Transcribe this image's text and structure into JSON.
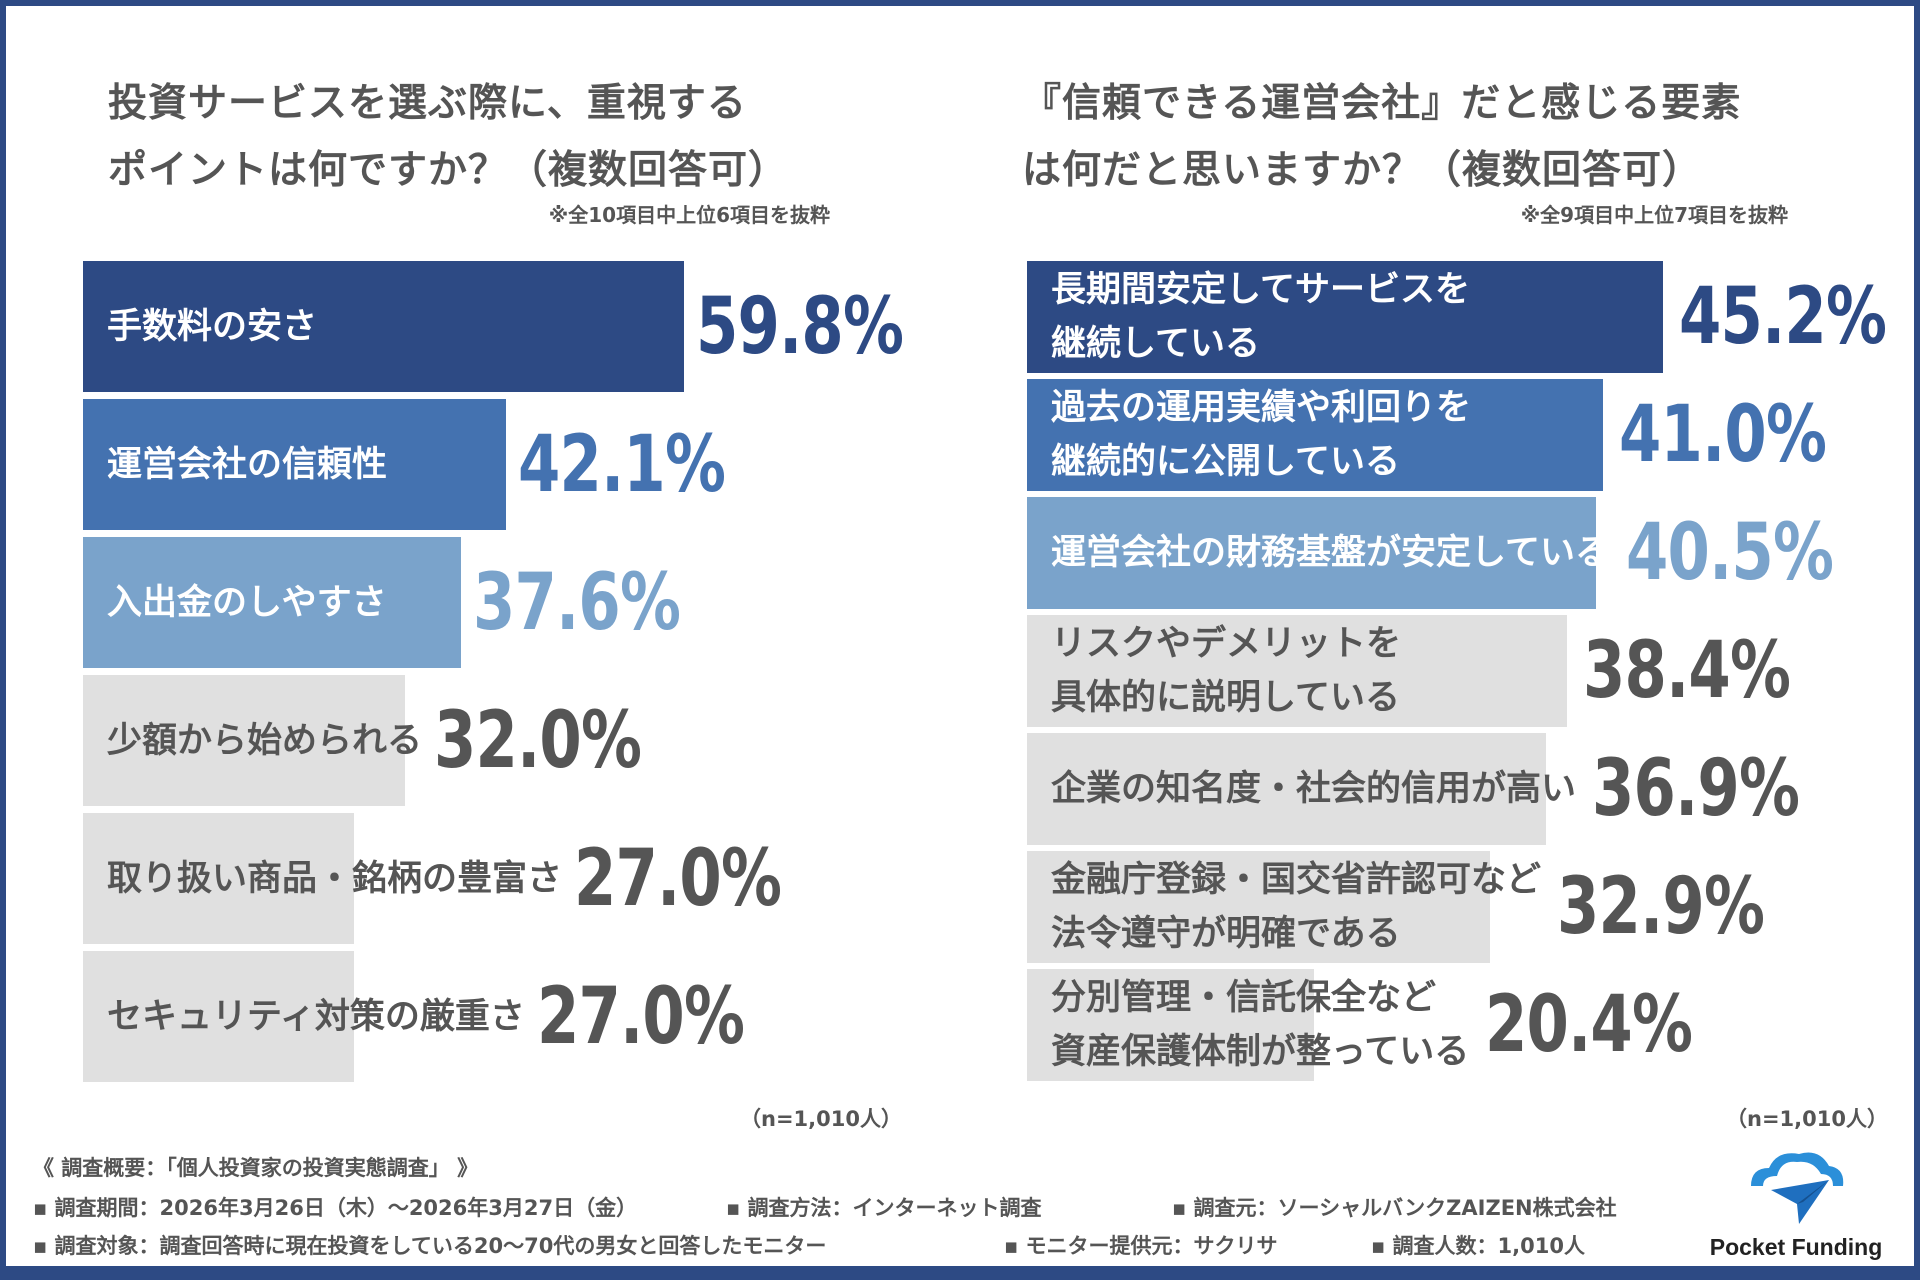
{
  "chart_data": [
    {
      "type": "bar",
      "orientation": "horizontal",
      "title": "投資サービスを選ぶ際に、重視する\nポイントは何ですか？（複数回答可）",
      "note": "※全10項目中上位6項目を抜粋",
      "sample": "（n=1,010人）",
      "unit": "%",
      "categories": [
        "手数料の安さ",
        "運営会社の信頼性",
        "入出金のしやすさ",
        "少額から始められる",
        "取り扱い商品・銘柄の豊富さ",
        "セキュリティ対策の厳重さ"
      ],
      "values": [
        59.8,
        42.1,
        37.6,
        32.0,
        27.0,
        27.0
      ],
      "labels": [
        "59.8%",
        "42.1%",
        "37.6%",
        "32.0%",
        "27.0%",
        "27.0%"
      ],
      "colors": [
        "#2d4a84",
        "#4472b0",
        "#7aa3cb",
        "#e0e0e0",
        "#e0e0e0",
        "#e0e0e0"
      ]
    },
    {
      "type": "bar",
      "orientation": "horizontal",
      "title": "『信頼できる運営会社』だと感じる要素\nは何だと思いますか？（複数回答可）",
      "note": "※全9項目中上位7項目を抜粋",
      "sample": "（n=1,010人）",
      "unit": "%",
      "categories": [
        "長期間安定してサービスを\n継続している",
        "過去の運用実績や利回りを\n継続的に公開している",
        "運営会社の財務基盤が安定している",
        "リスクやデメリットを\n具体的に説明している",
        "企業の知名度・社会的信用が高い",
        "金融庁登録・国交省許認可など\n法令遵守が明確である",
        "分別管理・信託保全など\n資産保護体制が整っている"
      ],
      "values": [
        45.2,
        41.0,
        40.5,
        38.4,
        36.9,
        32.9,
        20.4
      ],
      "labels": [
        "45.2%",
        "41.0%",
        "40.5%",
        "38.4%",
        "36.9%",
        "32.9%",
        "20.4%"
      ],
      "colors": [
        "#2d4a84",
        "#4472b0",
        "#7aa3cb",
        "#e0e0e0",
        "#e0e0e0",
        "#e0e0e0",
        "#e0e0e0"
      ]
    }
  ],
  "footer": {
    "heading": "《 調査概要：「個人投資家の投資実態調査」 》",
    "items": [
      "▪ 調査期間：2026年3月26日（木）～2026年3月27日（金）",
      "▪ 調査方法：インターネット調査",
      "▪ 調査元：ソーシャルバンクZAIZEN株式会社",
      "▪ 調査対象：調査回答時に現在投資をしている20～70代の男女と回答したモニター",
      "▪ モニター提供元：サクリサ",
      "▪ 調査人数：1,010人"
    ]
  },
  "logo": {
    "text": "Pocket Funding"
  },
  "border_color": "#2d4a84"
}
